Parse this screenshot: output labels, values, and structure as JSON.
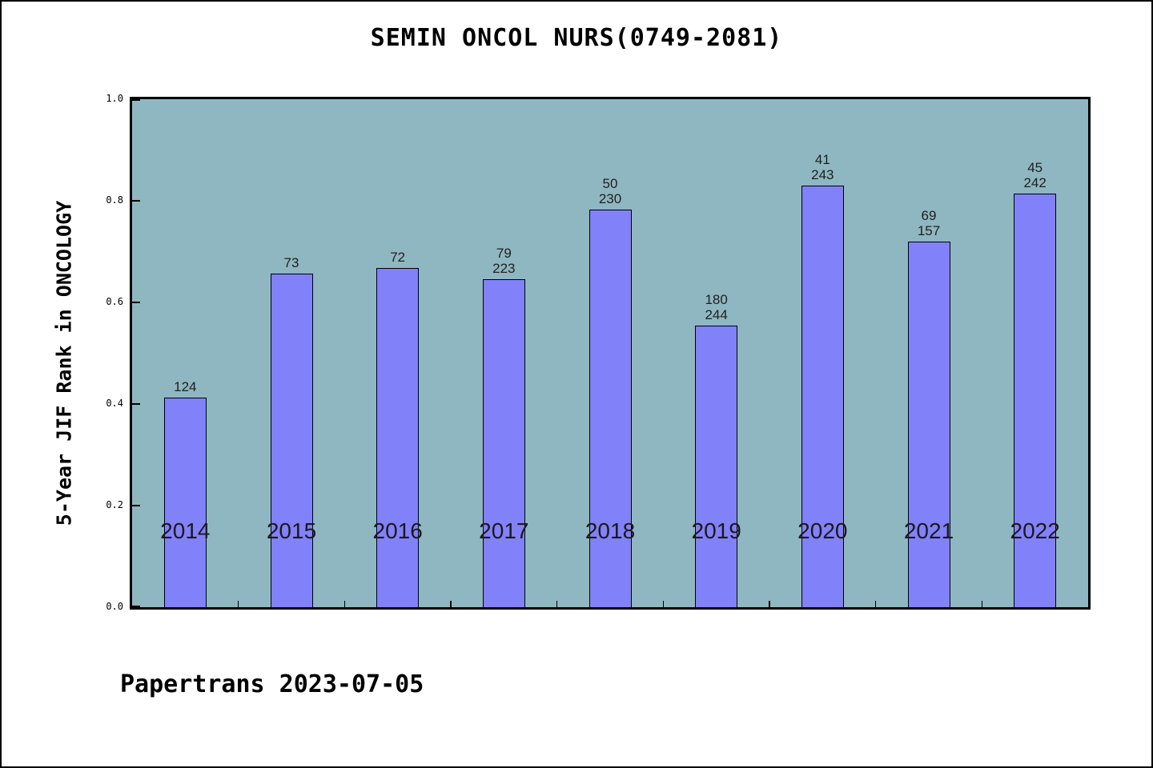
{
  "title": "SEMIN ONCOL NURS(0749-2081)",
  "footer": "Papertrans 2023-07-05",
  "colors": {
    "plot_background": "#8fb7c1",
    "bar_fill": "#8181fa",
    "bar_edge": "#000000",
    "frame": "#000000",
    "page_background": "#ffffff"
  },
  "chart_data": {
    "type": "bar",
    "title": "SEMIN ONCOL NURS(0749-2081)",
    "xlabel": "",
    "ylabel": "5-Year JIF Rank in ONCOLOGY",
    "ylim": [
      0.0,
      1.0
    ],
    "yticks": [
      0.0,
      0.2,
      0.4,
      0.6,
      0.8,
      1.0
    ],
    "ytick_labels": [
      "0.0",
      "0.2",
      "0.4",
      "0.6",
      "0.8",
      "1.0"
    ],
    "grid": false,
    "legend": false,
    "categories": [
      "2014",
      "2015",
      "2016",
      "2017",
      "2018",
      "2019",
      "2020",
      "2021",
      "2022"
    ],
    "values": [
      0.412,
      0.657,
      0.668,
      0.645,
      0.783,
      0.555,
      0.83,
      0.719,
      0.814
    ],
    "bar_labels": [
      [
        "124"
      ],
      [
        "73"
      ],
      [
        "72"
      ],
      [
        "79",
        "223"
      ],
      [
        "50",
        "230"
      ],
      [
        "180",
        "244"
      ],
      [
        "41",
        "243"
      ],
      [
        "69",
        "157"
      ],
      [
        "45",
        "242"
      ]
    ]
  }
}
